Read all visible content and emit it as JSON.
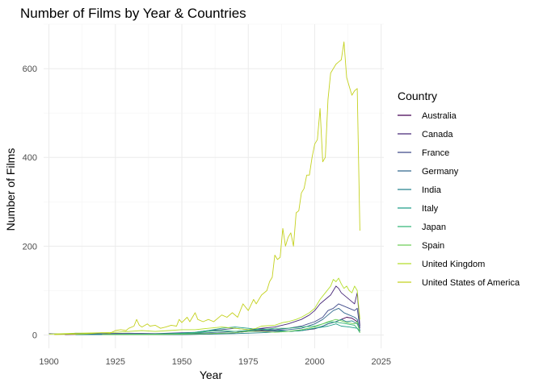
{
  "chart_data": {
    "type": "line",
    "title": "Number of Films by Year & Countries",
    "xlabel": "Year",
    "ylabel": "Number of Films",
    "xlim": [
      1898,
      2026
    ],
    "ylim": [
      -30,
      700
    ],
    "x_ticks": [
      1900,
      1925,
      1950,
      1975,
      2000,
      2025
    ],
    "y_ticks": [
      0,
      200,
      400,
      600
    ],
    "grid": true,
    "legend": {
      "title": "Country",
      "position": "right"
    },
    "series": [
      {
        "name": "Australia",
        "color": "#440154",
        "points": [
          [
            1906,
            1
          ],
          [
            1915,
            2
          ],
          [
            1930,
            1
          ],
          [
            1940,
            2
          ],
          [
            1950,
            2
          ],
          [
            1960,
            3
          ],
          [
            1970,
            5
          ],
          [
            1975,
            8
          ],
          [
            1980,
            10
          ],
          [
            1985,
            9
          ],
          [
            1990,
            8
          ],
          [
            1995,
            10
          ],
          [
            2000,
            14
          ],
          [
            2003,
            20
          ],
          [
            2005,
            25
          ],
          [
            2008,
            30
          ],
          [
            2010,
            35
          ],
          [
            2012,
            40
          ],
          [
            2014,
            38
          ],
          [
            2016,
            30
          ],
          [
            2017,
            8
          ]
        ]
      },
      {
        "name": "Canada",
        "color": "#482878",
        "points": [
          [
            1910,
            1
          ],
          [
            1930,
            1
          ],
          [
            1950,
            1
          ],
          [
            1960,
            2
          ],
          [
            1970,
            5
          ],
          [
            1975,
            10
          ],
          [
            1980,
            15
          ],
          [
            1985,
            18
          ],
          [
            1990,
            25
          ],
          [
            1995,
            35
          ],
          [
            1998,
            45
          ],
          [
            2000,
            55
          ],
          [
            2002,
            70
          ],
          [
            2004,
            80
          ],
          [
            2006,
            90
          ],
          [
            2008,
            110
          ],
          [
            2009,
            105
          ],
          [
            2010,
            95
          ],
          [
            2012,
            85
          ],
          [
            2014,
            75
          ],
          [
            2015,
            70
          ],
          [
            2016,
            95
          ],
          [
            2017,
            20
          ]
        ]
      },
      {
        "name": "France",
        "color": "#3e4989",
        "points": [
          [
            1900,
            3
          ],
          [
            1905,
            2
          ],
          [
            1910,
            4
          ],
          [
            1920,
            3
          ],
          [
            1930,
            4
          ],
          [
            1940,
            3
          ],
          [
            1950,
            5
          ],
          [
            1955,
            6
          ],
          [
            1960,
            10
          ],
          [
            1965,
            12
          ],
          [
            1970,
            15
          ],
          [
            1975,
            12
          ],
          [
            1980,
            14
          ],
          [
            1985,
            12
          ],
          [
            1990,
            15
          ],
          [
            1995,
            20
          ],
          [
            2000,
            30
          ],
          [
            2003,
            40
          ],
          [
            2005,
            55
          ],
          [
            2007,
            60
          ],
          [
            2009,
            70
          ],
          [
            2011,
            65
          ],
          [
            2013,
            60
          ],
          [
            2015,
            55
          ],
          [
            2016,
            60
          ],
          [
            2017,
            15
          ]
        ]
      },
      {
        "name": "Germany",
        "color": "#31688e",
        "points": [
          [
            1905,
            2
          ],
          [
            1915,
            3
          ],
          [
            1925,
            2
          ],
          [
            1935,
            2
          ],
          [
            1950,
            3
          ],
          [
            1960,
            5
          ],
          [
            1970,
            8
          ],
          [
            1975,
            10
          ],
          [
            1980,
            12
          ],
          [
            1985,
            10
          ],
          [
            1990,
            12
          ],
          [
            1995,
            15
          ],
          [
            2000,
            25
          ],
          [
            2003,
            35
          ],
          [
            2005,
            45
          ],
          [
            2007,
            55
          ],
          [
            2009,
            60
          ],
          [
            2011,
            50
          ],
          [
            2013,
            45
          ],
          [
            2015,
            40
          ],
          [
            2016,
            35
          ],
          [
            2017,
            10
          ]
        ]
      },
      {
        "name": "India",
        "color": "#26828e",
        "points": [
          [
            1930,
            1
          ],
          [
            1950,
            1
          ],
          [
            1960,
            2
          ],
          [
            1970,
            3
          ],
          [
            1980,
            5
          ],
          [
            1990,
            8
          ],
          [
            1995,
            10
          ],
          [
            2000,
            15
          ],
          [
            2003,
            20
          ],
          [
            2005,
            25
          ],
          [
            2008,
            30
          ],
          [
            2010,
            35
          ],
          [
            2012,
            30
          ],
          [
            2014,
            32
          ],
          [
            2016,
            25
          ],
          [
            2017,
            10
          ]
        ]
      },
      {
        "name": "Italy",
        "color": "#1f9e89",
        "points": [
          [
            1910,
            1
          ],
          [
            1925,
            1
          ],
          [
            1940,
            2
          ],
          [
            1950,
            4
          ],
          [
            1955,
            6
          ],
          [
            1960,
            10
          ],
          [
            1965,
            15
          ],
          [
            1970,
            18
          ],
          [
            1975,
            15
          ],
          [
            1980,
            12
          ],
          [
            1985,
            10
          ],
          [
            1990,
            8
          ],
          [
            1995,
            10
          ],
          [
            2000,
            15
          ],
          [
            2005,
            20
          ],
          [
            2008,
            25
          ],
          [
            2010,
            20
          ],
          [
            2013,
            18
          ],
          [
            2016,
            15
          ],
          [
            2017,
            5
          ]
        ]
      },
      {
        "name": "Japan",
        "color": "#35b779",
        "points": [
          [
            1920,
            1
          ],
          [
            1930,
            2
          ],
          [
            1940,
            2
          ],
          [
            1950,
            3
          ],
          [
            1955,
            5
          ],
          [
            1960,
            8
          ],
          [
            1965,
            10
          ],
          [
            1970,
            8
          ],
          [
            1975,
            10
          ],
          [
            1980,
            12
          ],
          [
            1985,
            15
          ],
          [
            1990,
            15
          ],
          [
            1995,
            18
          ],
          [
            2000,
            20
          ],
          [
            2003,
            25
          ],
          [
            2006,
            30
          ],
          [
            2009,
            28
          ],
          [
            2012,
            25
          ],
          [
            2015,
            22
          ],
          [
            2017,
            8
          ]
        ]
      },
      {
        "name": "Spain",
        "color": "#6ece58",
        "points": [
          [
            1920,
            1
          ],
          [
            1940,
            1
          ],
          [
            1950,
            2
          ],
          [
            1960,
            3
          ],
          [
            1970,
            5
          ],
          [
            1975,
            8
          ],
          [
            1980,
            8
          ],
          [
            1985,
            6
          ],
          [
            1990,
            8
          ],
          [
            1995,
            12
          ],
          [
            2000,
            18
          ],
          [
            2003,
            25
          ],
          [
            2005,
            30
          ],
          [
            2008,
            35
          ],
          [
            2010,
            32
          ],
          [
            2012,
            28
          ],
          [
            2015,
            25
          ],
          [
            2016,
            30
          ],
          [
            2017,
            5
          ]
        ]
      },
      {
        "name": "United Kingdom",
        "color": "#b5de2b",
        "points": [
          [
            1900,
            2
          ],
          [
            1910,
            4
          ],
          [
            1920,
            5
          ],
          [
            1925,
            6
          ],
          [
            1930,
            8
          ],
          [
            1935,
            10
          ],
          [
            1940,
            8
          ],
          [
            1945,
            10
          ],
          [
            1950,
            12
          ],
          [
            1955,
            12
          ],
          [
            1960,
            15
          ],
          [
            1965,
            18
          ],
          [
            1970,
            15
          ],
          [
            1975,
            12
          ],
          [
            1978,
            15
          ],
          [
            1980,
            20
          ],
          [
            1985,
            22
          ],
          [
            1988,
            28
          ],
          [
            1990,
            30
          ],
          [
            1993,
            35
          ],
          [
            1995,
            40
          ],
          [
            1998,
            50
          ],
          [
            2000,
            60
          ],
          [
            2002,
            80
          ],
          [
            2004,
            95
          ],
          [
            2006,
            110
          ],
          [
            2007,
            125
          ],
          [
            2008,
            120
          ],
          [
            2009,
            128
          ],
          [
            2010,
            115
          ],
          [
            2011,
            105
          ],
          [
            2012,
            110
          ],
          [
            2013,
            100
          ],
          [
            2014,
            95
          ],
          [
            2015,
            110
          ],
          [
            2016,
            100
          ],
          [
            2017,
            35
          ]
        ]
      },
      {
        "name": "United States of America",
        "color": "#c4d11e",
        "points": [
          [
            1902,
            1
          ],
          [
            1910,
            2
          ],
          [
            1915,
            3
          ],
          [
            1920,
            5
          ],
          [
            1923,
            4
          ],
          [
            1925,
            10
          ],
          [
            1927,
            12
          ],
          [
            1929,
            10
          ],
          [
            1930,
            15
          ],
          [
            1932,
            20
          ],
          [
            1933,
            35
          ],
          [
            1934,
            22
          ],
          [
            1935,
            18
          ],
          [
            1937,
            25
          ],
          [
            1938,
            20
          ],
          [
            1940,
            22
          ],
          [
            1942,
            15
          ],
          [
            1944,
            18
          ],
          [
            1946,
            22
          ],
          [
            1948,
            20
          ],
          [
            1949,
            35
          ],
          [
            1950,
            28
          ],
          [
            1952,
            40
          ],
          [
            1953,
            30
          ],
          [
            1955,
            50
          ],
          [
            1956,
            35
          ],
          [
            1958,
            30
          ],
          [
            1960,
            35
          ],
          [
            1962,
            30
          ],
          [
            1965,
            45
          ],
          [
            1967,
            40
          ],
          [
            1969,
            50
          ],
          [
            1971,
            40
          ],
          [
            1973,
            70
          ],
          [
            1975,
            55
          ],
          [
            1977,
            80
          ],
          [
            1978,
            70
          ],
          [
            1980,
            90
          ],
          [
            1982,
            100
          ],
          [
            1983,
            120
          ],
          [
            1984,
            130
          ],
          [
            1985,
            180
          ],
          [
            1986,
            170
          ],
          [
            1987,
            175
          ],
          [
            1988,
            240
          ],
          [
            1989,
            200
          ],
          [
            1990,
            220
          ],
          [
            1991,
            230
          ],
          [
            1992,
            200
          ],
          [
            1993,
            275
          ],
          [
            1994,
            280
          ],
          [
            1995,
            320
          ],
          [
            1996,
            330
          ],
          [
            1997,
            360
          ],
          [
            1998,
            360
          ],
          [
            1999,
            400
          ],
          [
            2000,
            430
          ],
          [
            2001,
            440
          ],
          [
            2002,
            510
          ],
          [
            2003,
            390
          ],
          [
            2004,
            400
          ],
          [
            2005,
            530
          ],
          [
            2006,
            590
          ],
          [
            2007,
            600
          ],
          [
            2008,
            610
          ],
          [
            2009,
            615
          ],
          [
            2010,
            620
          ],
          [
            2011,
            660
          ],
          [
            2012,
            580
          ],
          [
            2013,
            560
          ],
          [
            2014,
            540
          ],
          [
            2015,
            550
          ],
          [
            2016,
            555
          ],
          [
            2017,
            235
          ]
        ]
      }
    ]
  }
}
